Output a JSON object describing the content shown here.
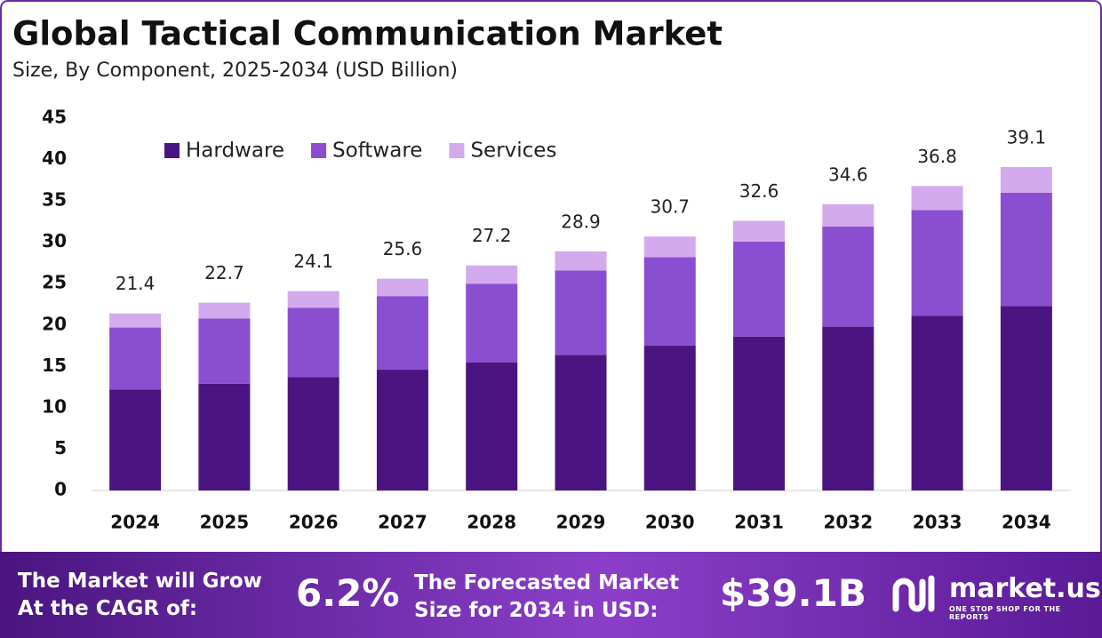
{
  "chart_data": {
    "type": "stacked_bar",
    "title": "Global Tactical Communication Market",
    "subtitle": "Size, By Component, 2025-2034 (USD Billion)",
    "categories": [
      "2024",
      "2025",
      "2026",
      "2027",
      "2028",
      "2029",
      "2030",
      "2031",
      "2032",
      "2033",
      "2034"
    ],
    "series": [
      {
        "name": "Hardware",
        "color": "#4a1580",
        "values": [
          12.2,
          12.9,
          13.7,
          14.6,
          15.5,
          16.4,
          17.5,
          18.6,
          19.8,
          21.1,
          22.3
        ]
      },
      {
        "name": "Software",
        "color": "#8a4fd0",
        "values": [
          7.5,
          7.9,
          8.4,
          8.9,
          9.5,
          10.2,
          10.7,
          11.5,
          12.1,
          12.8,
          13.7
        ]
      },
      {
        "name": "Services",
        "color": "#d3aaee",
        "values": [
          1.7,
          1.9,
          2.0,
          2.1,
          2.2,
          2.3,
          2.5,
          2.5,
          2.7,
          2.9,
          3.1
        ]
      }
    ],
    "totals": [
      21.4,
      22.7,
      24.1,
      25.6,
      27.2,
      28.9,
      30.7,
      32.6,
      34.6,
      36.8,
      39.1
    ],
    "ylim": [
      0,
      45
    ],
    "yticks": [
      0,
      5,
      10,
      15,
      20,
      25,
      30,
      35,
      40,
      45
    ],
    "grid": false,
    "legend": "top-left"
  },
  "footer": {
    "cagr_text": "The Market will Grow At the CAGR of:",
    "cagr": "6.2%",
    "forecast_text": "The Forecasted Market Size for 2034 in USD:",
    "forecast": "$39.1B",
    "brand": "market.us",
    "tagline": "ONE STOP SHOP FOR THE REPORTS"
  }
}
